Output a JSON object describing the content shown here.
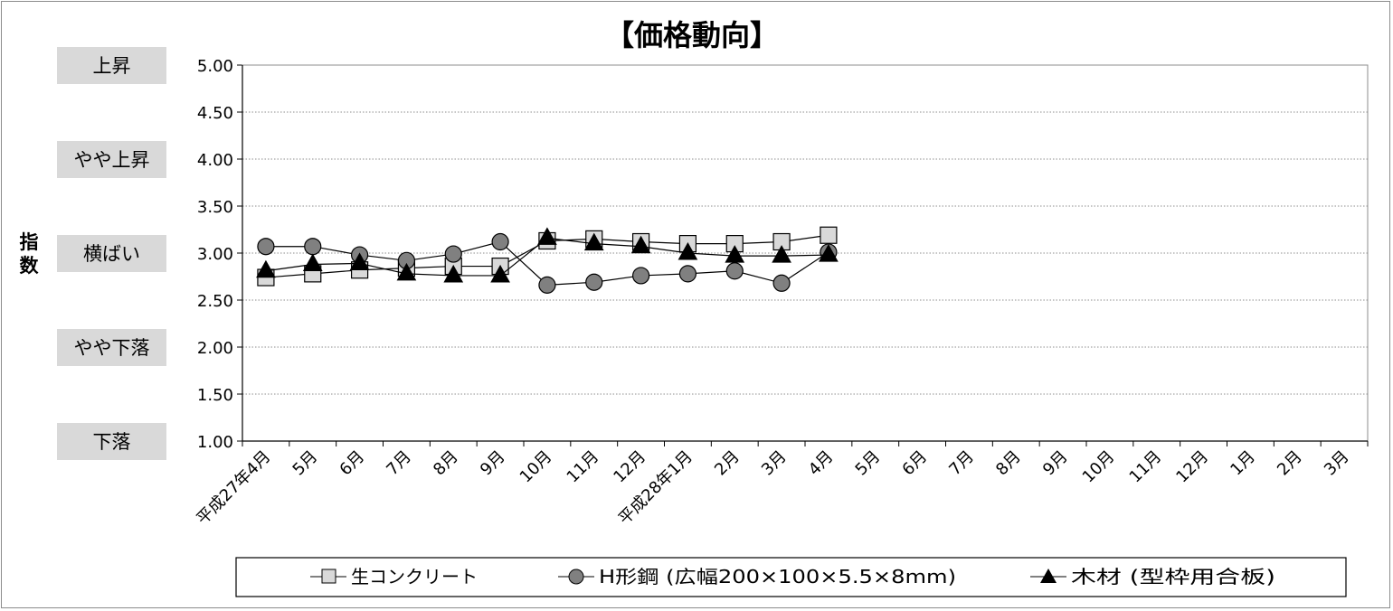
{
  "chart_data": {
    "type": "line",
    "title": "【価格動向】",
    "ylabel": "指数",
    "ylim": [
      1.0,
      5.0
    ],
    "ytick_step": 0.5,
    "grid": true,
    "legend_position": "bottom",
    "level_labels": [
      {
        "value": 5.0,
        "label": "上昇"
      },
      {
        "value": 4.0,
        "label": "やや上昇"
      },
      {
        "value": 3.0,
        "label": "横ばい"
      },
      {
        "value": 2.0,
        "label": "やや下落"
      },
      {
        "value": 1.0,
        "label": "下落"
      }
    ],
    "categories": [
      "平成27年4月",
      "5月",
      "6月",
      "7月",
      "8月",
      "9月",
      "10月",
      "11月",
      "12月",
      "平成28年1月",
      "2月",
      "3月",
      "4月",
      "5月",
      "6月",
      "7月",
      "8月",
      "9月",
      "10月",
      "11月",
      "12月",
      "1月",
      "2月",
      "3月"
    ],
    "series": [
      {
        "name": "生コンクリート",
        "marker": "square",
        "fill": "#d9d9d9",
        "values": [
          2.74,
          2.78,
          2.82,
          2.84,
          2.86,
          2.86,
          3.13,
          3.15,
          3.12,
          3.1,
          3.1,
          3.12,
          3.19,
          null,
          null,
          null,
          null,
          null,
          null,
          null,
          null,
          null,
          null,
          null
        ]
      },
      {
        "name": "H形鋼 (広幅200×100×5.5×8mm)",
        "marker": "circle",
        "fill": "#808080",
        "values": [
          3.07,
          3.07,
          2.98,
          2.92,
          2.99,
          3.12,
          2.66,
          2.69,
          2.76,
          2.78,
          2.81,
          2.68,
          3.01,
          null,
          null,
          null,
          null,
          null,
          null,
          null,
          null,
          null,
          null,
          null
        ]
      },
      {
        "name": "木材 (型枠用合板)",
        "marker": "triangle",
        "fill": "#000000",
        "values": [
          2.81,
          2.88,
          2.89,
          2.78,
          2.76,
          2.76,
          3.16,
          3.1,
          3.07,
          3.0,
          2.97,
          2.97,
          2.98,
          null,
          null,
          null,
          null,
          null,
          null,
          null,
          null,
          null,
          null,
          null
        ]
      }
    ]
  },
  "legend": {
    "items": [
      "生コンクリート",
      "H形鋼 (広幅200×100×5.5×8mm)",
      "木材 (型枠用合板)"
    ]
  }
}
